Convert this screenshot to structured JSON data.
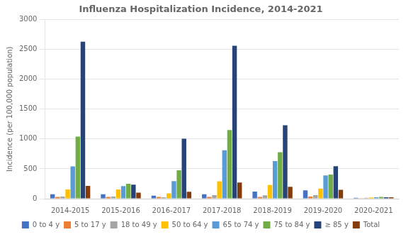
{
  "chart_data": {
    "type": "bar",
    "title": "Influenza Hospitalization Incidence, 2014-2021",
    "ylabel": "Incidence (per 100,000 population)",
    "categories": [
      "2014-2015",
      "2015-2016",
      "2016-2017",
      "2017-2018",
      "2018-2019",
      "2019-2020",
      "2020-2021"
    ],
    "series": [
      {
        "name": "0 to 4 y",
        "color": "#4472c4",
        "values": [
          75,
          75,
          50,
          75,
          120,
          140,
          15
        ]
      },
      {
        "name": "5 to 17 y",
        "color": "#ed7d31",
        "values": [
          30,
          30,
          30,
          30,
          30,
          35,
          10
        ]
      },
      {
        "name": "18 to 49 y",
        "color": "#a5a5a5",
        "values": [
          35,
          35,
          25,
          60,
          55,
          60,
          15
        ]
      },
      {
        "name": "50 to 64 y",
        "color": "#ffc000",
        "values": [
          155,
          155,
          90,
          290,
          230,
          170,
          20
        ]
      },
      {
        "name": "65 to 74 y",
        "color": "#5b9bd5",
        "values": [
          540,
          210,
          295,
          810,
          630,
          390,
          25
        ]
      },
      {
        "name": "75 to 84 y",
        "color": "#70ad47",
        "values": [
          1040,
          250,
          475,
          1150,
          780,
          405,
          30
        ]
      },
      {
        "name": "≥ 85 y",
        "color": "#264478",
        "values": [
          2630,
          235,
          1005,
          2560,
          1230,
          545,
          25
        ]
      },
      {
        "name": "Total",
        "color": "#843c0c",
        "values": [
          215,
          100,
          115,
          270,
          200,
          150,
          25
        ]
      }
    ],
    "ylim": [
      0,
      3000
    ],
    "yticks": [
      0,
      500,
      1000,
      1500,
      2000,
      2500,
      3000
    ],
    "grid": true,
    "legend": "bottom"
  }
}
